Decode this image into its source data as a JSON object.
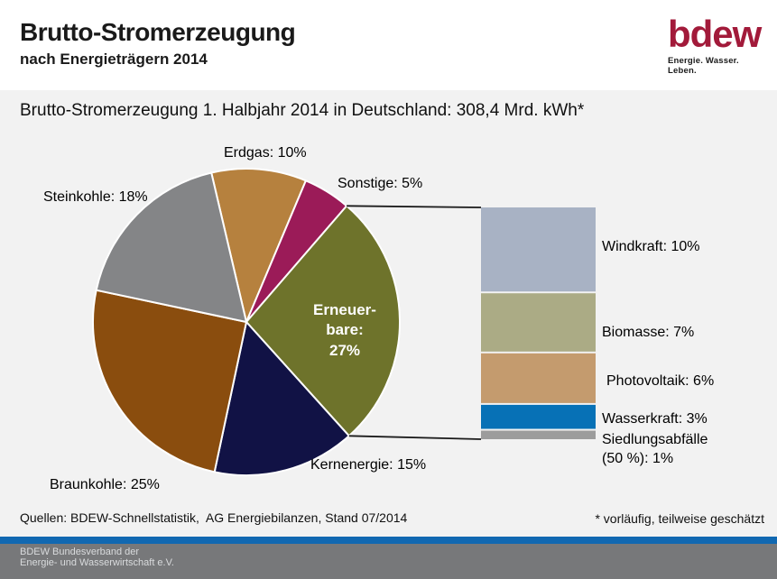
{
  "header": {
    "title": "Brutto-Stromerzeugung",
    "subtitle": "nach Energieträgern 2014",
    "logo": {
      "text": "bdew",
      "tagline": "Energie. Wasser. Leben.",
      "color": "#A21A3A"
    }
  },
  "main": {
    "headline": "Brutto-Stromerzeugung 1. Halbjahr 2014 in Deutschland: 308,4 Mrd. kWh*"
  },
  "chart_data": {
    "type": "pie",
    "title": "Brutto-Stromerzeugung 1. Halbjahr 2014 in Deutschland: 308,4 Mrd. kWh*",
    "total": "308,4 Mrd. kWh",
    "unit": "%",
    "start_angle_deg": -13.2,
    "slices": [
      {
        "name": "Erdgas",
        "value": 10,
        "color": "#B6813E",
        "label_text": "Erdgas: 10%"
      },
      {
        "name": "Sonstige",
        "value": 5,
        "color": "#9B1B58",
        "label_text": "Sonstige: 5%"
      },
      {
        "name": "Erneuerbare",
        "value": 27,
        "color": "#6E732B",
        "label_text": "Erneuer-\nbare:\n27%"
      },
      {
        "name": "Kernenergie",
        "value": 15,
        "color": "#111245",
        "label_text": "Kernenergie: 15%"
      },
      {
        "name": "Braunkohle",
        "value": 25,
        "color": "#8A4D0E",
        "label_text": "Braunkohle: 25%"
      },
      {
        "name": "Steinkohle",
        "value": 18,
        "color": "#848587",
        "label_text": "Steinkohle: 18%"
      }
    ],
    "breakdown": {
      "of_slice": "Erneuerbare",
      "type": "stacked-bar",
      "segments": [
        {
          "name": "Windkraft",
          "value": 10,
          "color": "#A8B2C4",
          "label_text": "Windkraft: 10%"
        },
        {
          "name": "Biomasse",
          "value": 7,
          "color": "#ABAB85",
          "label_text": "Biomasse: 7%"
        },
        {
          "name": "Photovoltaik",
          "value": 6,
          "color": "#C49B6E",
          "label_text": "Photovoltaik: 6%"
        },
        {
          "name": "Wasserkraft",
          "value": 3,
          "color": "#0771B6",
          "label_text": "Wasserkraft: 3%"
        },
        {
          "name": "Siedlungsabfaelle",
          "value": 1,
          "color": "#9C9C9C",
          "label_text": "Siedlungsabfälle\n(50 %): 1%"
        }
      ]
    }
  },
  "footer": {
    "sources": "Quellen: BDEW-Schnellstatistik,  AG Energiebilanzen, Stand 07/2014",
    "note": "* vorläufig, teilweise geschätzt"
  },
  "bottombar": {
    "org": "BDEW Bundesverband der\nEnergie- und Wasserwirtschaft e.V."
  }
}
